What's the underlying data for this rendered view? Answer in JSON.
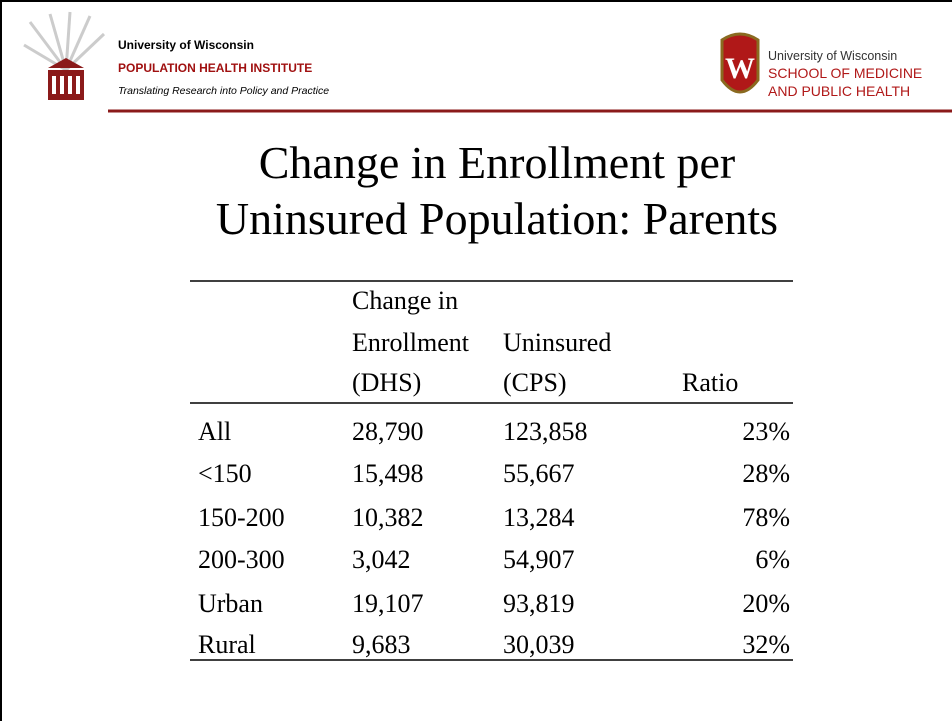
{
  "header": {
    "left": {
      "line1": "University of Wisconsin",
      "line2": "POPULATION HEALTH INSTITUTE",
      "line3": "Translating Research into Policy and Practice"
    },
    "right": {
      "line1": "University of Wisconsin",
      "line2": "SCHOOL OF MEDICINE",
      "line3": "AND PUBLIC HEALTH"
    }
  },
  "title": [
    "Change in Enrollment per",
    "Uninsured Population: Parents"
  ],
  "table": {
    "header": [
      [],
      [
        "Change in",
        "Enrollment",
        "(DHS)"
      ],
      [
        "Uninsured",
        "(CPS)"
      ],
      [
        "Ratio"
      ]
    ],
    "rows": [
      [
        "All",
        "28,790",
        "123,858",
        "23%"
      ],
      [
        "<150",
        "15,498",
        "55,667",
        "28%"
      ],
      [
        "150-200",
        "10,382",
        "13,284",
        "78%"
      ],
      [
        "200-300",
        "3,042",
        "54,907",
        "6%"
      ],
      [
        "Urban",
        "19,107",
        "93,819",
        "20%"
      ],
      [
        "Rural",
        "9,683",
        "30,039",
        "32%"
      ]
    ]
  }
}
